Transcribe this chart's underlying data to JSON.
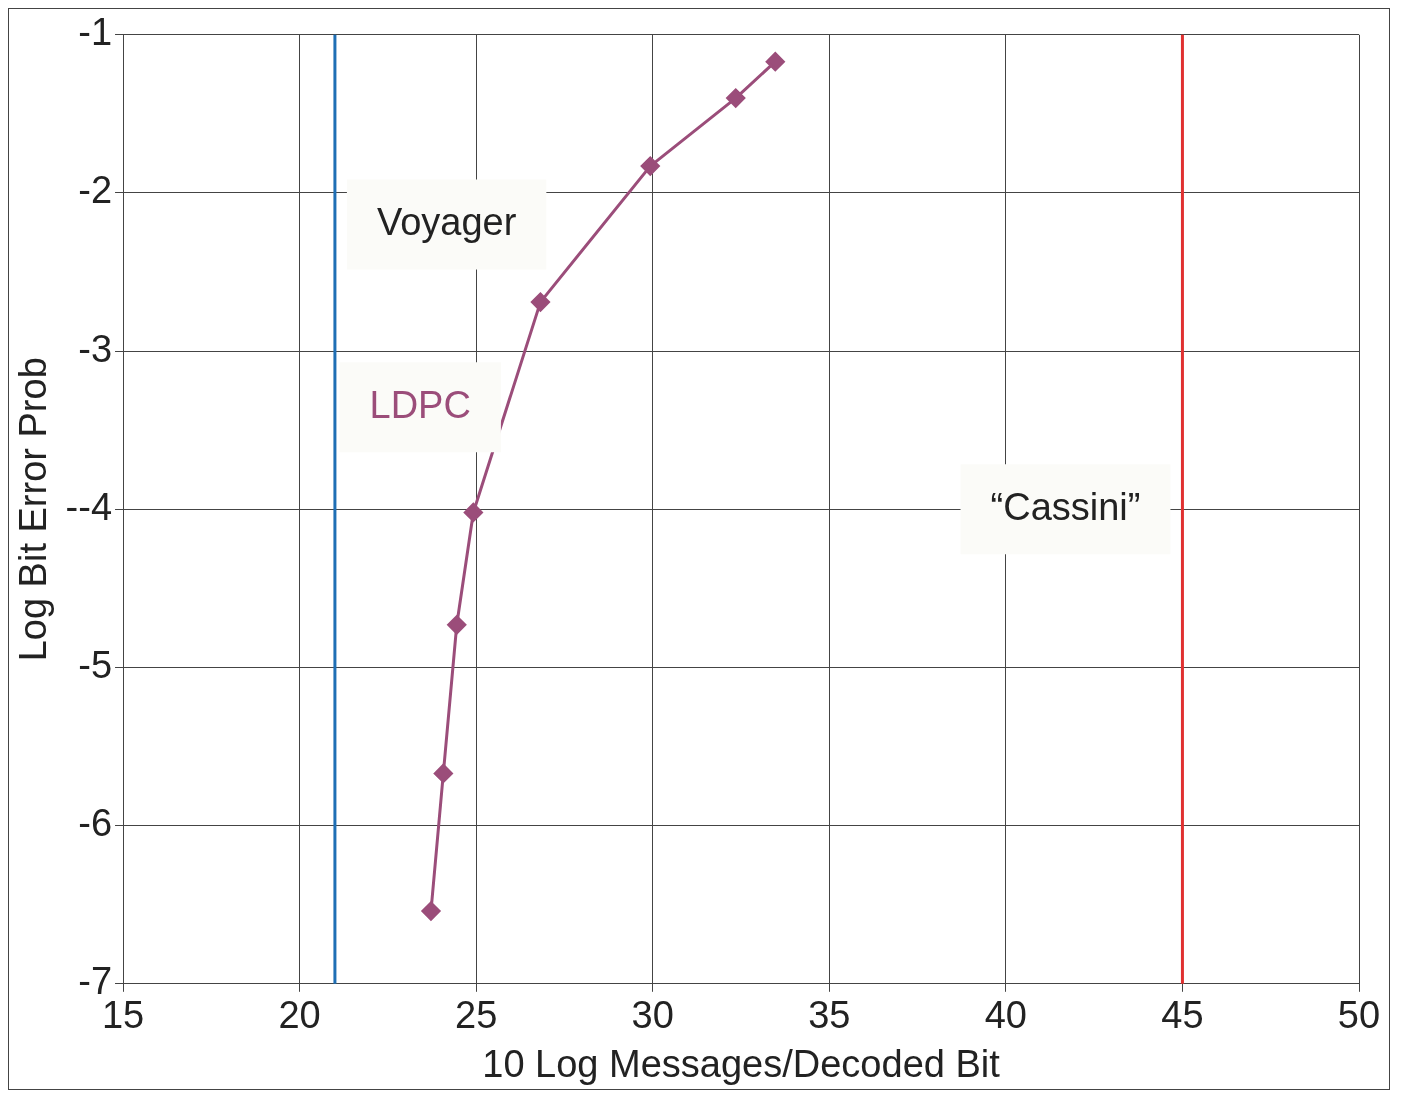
{
  "chart_data": {
    "type": "line",
    "xlabel": "10 Log Messages/Decoded Bit",
    "ylabel": "Log Bit Error Prob",
    "xlim": [
      15,
      50
    ],
    "xticks": [
      15,
      20,
      25,
      30,
      35,
      40,
      45,
      50
    ],
    "ylim": [
      -7,
      -1
    ],
    "yticks": [
      -7,
      -6,
      -5,
      {
        "value": -4,
        "label": "--4"
      },
      -3,
      -2,
      -1
    ],
    "grid": true,
    "legend": false,
    "marker": "diamond",
    "line_style": "solid",
    "series": [
      {
        "name": "LDPC",
        "color": "#9b4d7a",
        "x": [
          23.72,
          24.07,
          24.45,
          24.92,
          26.82,
          29.93,
          32.35,
          33.47
        ],
        "values": [
          -6.54,
          -5.67,
          -4.73,
          -4.02,
          -2.69,
          -1.83,
          -1.4,
          -1.17
        ]
      }
    ],
    "ref_lines": [
      {
        "axis": "x",
        "value": 21,
        "label": "Voyager",
        "color": "#1f6fb5"
      },
      {
        "axis": "x",
        "value": 45,
        "label": "“Cassini”",
        "color": "#e03030"
      }
    ]
  }
}
